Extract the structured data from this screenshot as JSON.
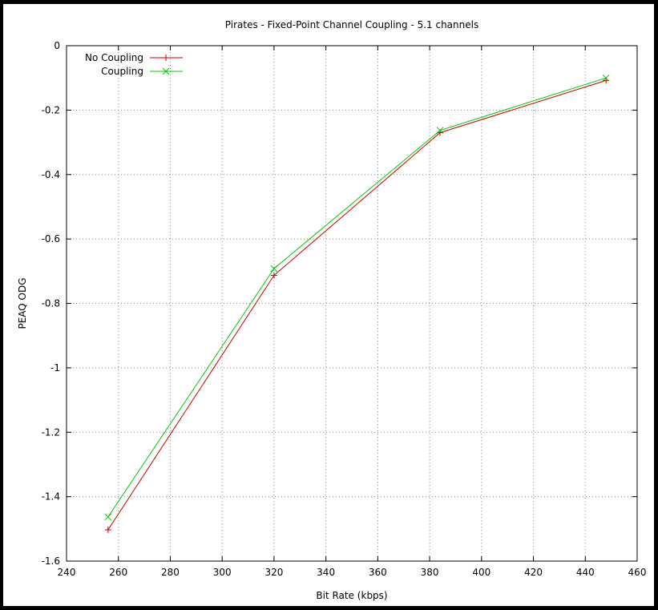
{
  "chart_data": {
    "type": "line",
    "title": "Pirates - Fixed-Point Channel Coupling - 5.1 channels",
    "xlabel": "Bit Rate (kbps)",
    "ylabel": "PEAQ ODG",
    "xlim": [
      240,
      460
    ],
    "ylim": [
      -1.6,
      0
    ],
    "xticks": [
      240,
      260,
      280,
      300,
      320,
      340,
      360,
      380,
      400,
      420,
      440,
      460
    ],
    "yticks": [
      0,
      -0.2,
      -0.4,
      -0.6,
      -0.8,
      -1,
      -1.2,
      -1.4,
      -1.6
    ],
    "xtick_labels": [
      "240",
      "260",
      "280",
      "300",
      "320",
      "340",
      "360",
      "380",
      "400",
      "420",
      "440",
      "460"
    ],
    "ytick_labels": [
      "0",
      "-0.2",
      "-0.4",
      "-0.6",
      "-0.8",
      "-1",
      "-1.2",
      "-1.4",
      "-1.6"
    ],
    "grid": true,
    "legend_position": "top-left",
    "series": [
      {
        "name": "No Coupling",
        "color": "#cc0000",
        "marker": "plus",
        "x": [
          256,
          320,
          384,
          448
        ],
        "y": [
          -1.503,
          -0.713,
          -0.27,
          -0.108
        ]
      },
      {
        "name": "Coupling",
        "color": "#00cc00",
        "marker": "cross",
        "x": [
          256,
          320,
          384,
          448
        ],
        "y": [
          -1.463,
          -0.692,
          -0.263,
          -0.1
        ]
      }
    ]
  }
}
